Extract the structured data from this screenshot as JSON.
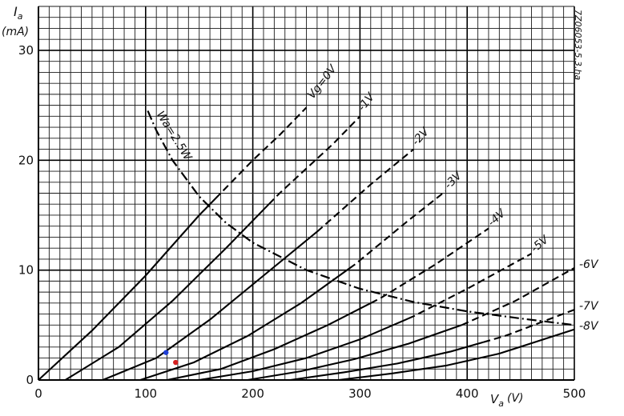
{
  "chart_data": {
    "type": "line",
    "title": "",
    "ylabel": "I",
    "ylabel_sub": "a",
    "yunit": "(mA)",
    "xlabel": "V",
    "xlabel_sub": "a",
    "xunit": "(V)",
    "side_text": "7Z06053-5.3.ha",
    "xlim": [
      0,
      500
    ],
    "ylim": [
      0,
      34
    ],
    "xticks": [
      0,
      100,
      200,
      300,
      400,
      500
    ],
    "yticks": [
      0,
      10,
      20,
      30
    ],
    "xtick_labels": [
      "0",
      "100",
      "200",
      "300",
      "400",
      "500"
    ],
    "ytick_labels": [
      "0",
      "10",
      "20",
      "30"
    ],
    "grid": true,
    "series": [
      {
        "name": "Vg=0V",
        "label": "Vg=0V",
        "x": [
          0,
          50,
          100,
          150,
          200,
          225,
          250
        ],
        "y": [
          0,
          4.5,
          9.5,
          15.0,
          20.0,
          22.3,
          24.8
        ]
      },
      {
        "name": "-1V",
        "label": "-1V",
        "x": [
          25,
          75,
          125,
          175,
          225,
          275,
          300
        ],
        "y": [
          0,
          3.0,
          7.2,
          12.0,
          17.0,
          21.5,
          24.0
        ]
      },
      {
        "name": "-2V",
        "label": "-2V",
        "x": [
          60,
          110,
          160,
          210,
          260,
          310,
          350
        ],
        "y": [
          0,
          2.0,
          5.5,
          9.5,
          13.5,
          17.8,
          21.0
        ]
      },
      {
        "name": "-3V",
        "label": "-3V",
        "x": [
          95,
          145,
          195,
          245,
          295,
          345,
          380
        ],
        "y": [
          0,
          1.6,
          4.0,
          7.0,
          10.5,
          14.5,
          17.2
        ]
      },
      {
        "name": "-4V",
        "label": "-4V",
        "x": [
          120,
          170,
          220,
          270,
          320,
          370,
          420
        ],
        "y": [
          0,
          1.0,
          2.8,
          5.0,
          7.5,
          10.5,
          13.8
        ]
      },
      {
        "name": "-5V",
        "label": "-5V",
        "x": [
          150,
          200,
          250,
          300,
          350,
          400,
          460
        ],
        "y": [
          0,
          0.8,
          2.0,
          3.7,
          5.8,
          8.3,
          11.5
        ]
      },
      {
        "name": "-6V",
        "label": "-6V",
        "x": [
          195,
          245,
          295,
          345,
          395,
          445,
          500
        ],
        "y": [
          0,
          0.8,
          1.9,
          3.3,
          5.0,
          7.2,
          10.2
        ]
      },
      {
        "name": "-7V",
        "label": "-7V",
        "x": [
          235,
          285,
          335,
          385,
          435,
          500
        ],
        "y": [
          0,
          0.7,
          1.5,
          2.6,
          4.0,
          6.4
        ]
      },
      {
        "name": "-8V",
        "label": "-8V",
        "x": [
          280,
          330,
          380,
          430,
          500
        ],
        "y": [
          0,
          0.6,
          1.3,
          2.4,
          4.6
        ]
      },
      {
        "name": "Wa=2.5W",
        "label": "Wa=2.5W",
        "x": [
          102,
          110,
          125,
          150,
          175,
          200,
          250,
          300,
          350,
          400,
          450,
          500
        ],
        "y": [
          24.5,
          22.7,
          20.0,
          16.7,
          14.3,
          12.5,
          10.0,
          8.3,
          7.1,
          6.25,
          5.6,
          5.0
        ]
      }
    ],
    "markers": [
      {
        "color": "#1f3fd6",
        "x": 119,
        "y": 2.5
      },
      {
        "color": "#d42020",
        "x": 128,
        "y": 1.6
      }
    ]
  }
}
